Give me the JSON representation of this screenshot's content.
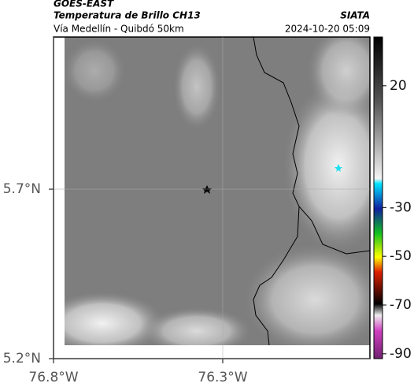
{
  "header": {
    "title": "GOES-EAST",
    "subtitle": "Temperatura de Brillo CH13",
    "route": "Vía Medellín - Quibdó 50km",
    "source": "SIATA",
    "timestamp": "2024-10-20 05:09"
  },
  "map": {
    "xlim": [
      -76.8,
      -75.865
    ],
    "ylim": [
      5.2,
      6.149
    ],
    "xticks": [
      {
        "value": -76.8,
        "label": "76.8°W"
      },
      {
        "value": -76.3,
        "label": "76.3°W"
      }
    ],
    "yticks": [
      {
        "value": 5.2,
        "label": "5.2°N"
      },
      {
        "value": 5.7,
        "label": "5.7°N"
      }
    ],
    "grid": true
  },
  "colorbar": {
    "clim": [
      -92,
      40
    ],
    "ticks": [
      20,
      -30,
      -50,
      -70,
      -90
    ]
  }
}
